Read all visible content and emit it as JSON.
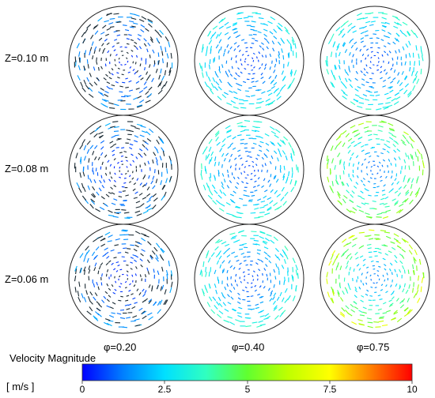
{
  "row_labels": [
    "Z=0.10 m",
    "Z=0.08 m",
    "Z=0.06 m"
  ],
  "col_labels": [
    "φ=0.20",
    "φ=0.40",
    "φ=0.75"
  ],
  "colorbar": {
    "title": "Velocity Magnitude",
    "unit": "[ m/s ]",
    "ticks": [
      "0",
      "2.5",
      "5",
      "7.5",
      "10"
    ],
    "min": 0,
    "max": 10,
    "colors": [
      "#0000ff",
      "#0080ff",
      "#00e0ff",
      "#30ffc0",
      "#60ff30",
      "#c0ff00",
      "#ffff00",
      "#ff8000",
      "#ff0000"
    ]
  },
  "panel_max_speed": [
    [
      2.0,
      3.5,
      4.0
    ],
    [
      2.0,
      4.0,
      6.5
    ],
    [
      2.0,
      4.0,
      7.5
    ]
  ]
}
